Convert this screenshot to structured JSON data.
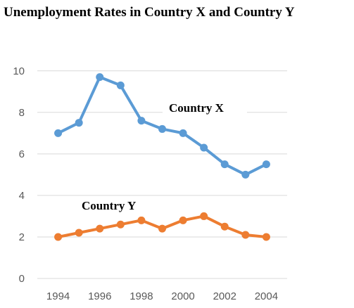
{
  "chart_data": {
    "type": "line",
    "title": "Unemployment Rates in Country X and Country Y",
    "xlabel": "",
    "ylabel": "",
    "x": [
      1994,
      1995,
      1996,
      1997,
      1998,
      1999,
      2000,
      2001,
      2002,
      2003,
      2004
    ],
    "x_tick_labels": [
      "1994",
      "1996",
      "1998",
      "2000",
      "2002",
      "2004"
    ],
    "y_tick_labels": [
      "0",
      "2",
      "4",
      "6",
      "8",
      "10"
    ],
    "xlim": [
      1993,
      2005
    ],
    "ylim": [
      0,
      10.5
    ],
    "grid": true,
    "legend": "none",
    "series": [
      {
        "name": "Country X",
        "color": "#5b9bd5",
        "values": [
          7.0,
          7.5,
          9.7,
          9.3,
          7.6,
          7.2,
          7.0,
          6.3,
          5.5,
          5.0,
          5.5
        ]
      },
      {
        "name": "Country Y",
        "color": "#ed7d31",
        "values": [
          2.0,
          2.2,
          2.4,
          2.6,
          2.8,
          2.4,
          2.8,
          3.0,
          2.5,
          2.1,
          2.0
        ]
      }
    ]
  }
}
